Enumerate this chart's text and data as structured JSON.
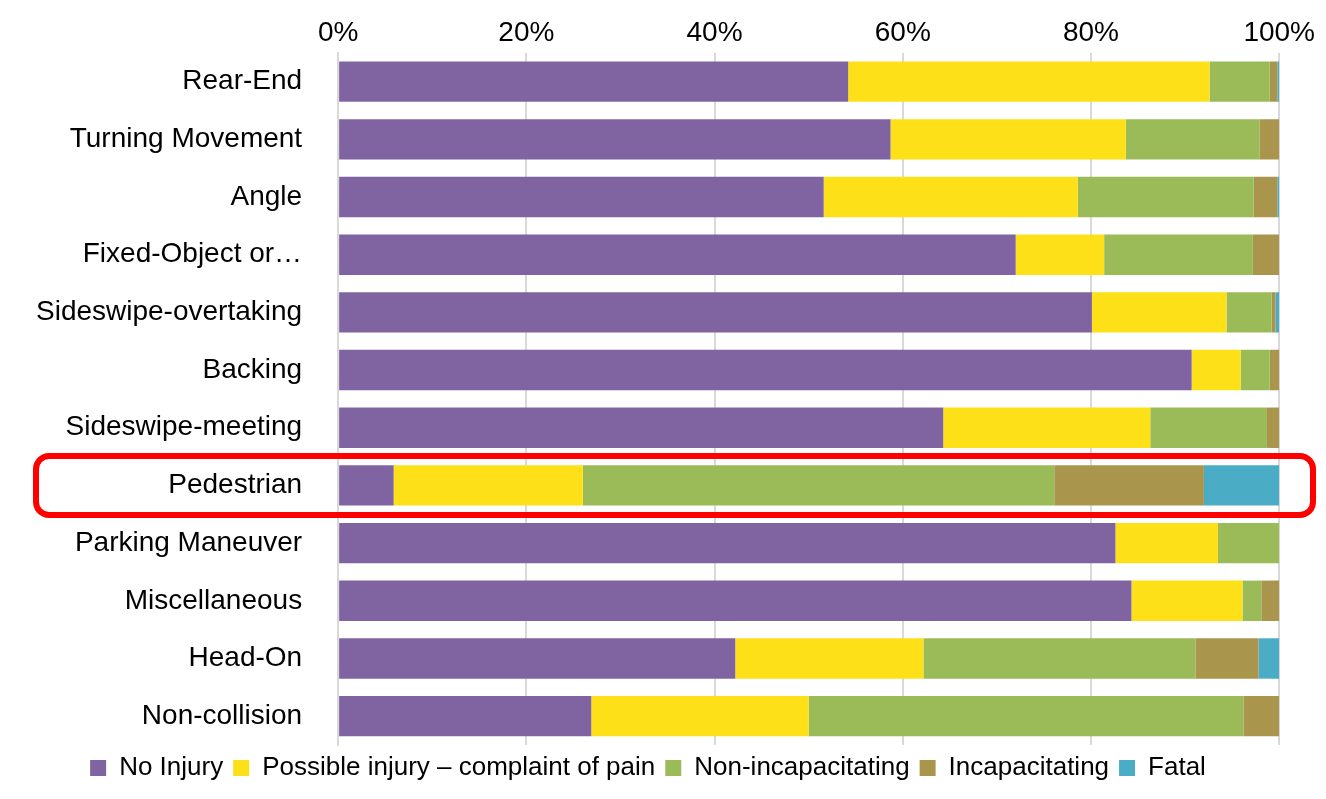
{
  "chart_data": {
    "type": "bar",
    "orientation": "horizontal",
    "stacked": true,
    "categories": [
      "Rear-End",
      "Turning Movement",
      "Angle",
      "Fixed-Object or…",
      "Sideswipe-overtaking",
      "Backing",
      "Sideswipe-meeting",
      "Pedestrian",
      "Parking Maneuver",
      "Miscellaneous",
      "Head-On",
      "Non-collision"
    ],
    "series": [
      {
        "name": "No Injury",
        "color": "#8064a2",
        "values": [
          54.2,
          58.7,
          51.6,
          72.0,
          80.1,
          90.7,
          64.3,
          5.9,
          82.6,
          84.3,
          42.2,
          26.9
        ]
      },
      {
        "name": "Possible injury – complaint of pain",
        "color": "#fde017",
        "values": [
          38.4,
          25.0,
          27.0,
          9.4,
          14.3,
          5.2,
          22.0,
          20.1,
          10.9,
          11.8,
          20.0,
          23.1
        ]
      },
      {
        "name": "Non-incapacitating",
        "color": "#9bbb59",
        "values": [
          6.4,
          14.2,
          18.7,
          15.8,
          4.8,
          3.1,
          12.4,
          50.1,
          6.5,
          2.0,
          28.9,
          46.2
        ]
      },
      {
        "name": "Incapacitating",
        "color": "#aa954d",
        "values": [
          0.8,
          2.1,
          2.5,
          2.8,
          0.4,
          1.0,
          1.3,
          15.9,
          0,
          1.9,
          6.7,
          3.8
        ]
      },
      {
        "name": "Fatal",
        "color": "#4bacc6",
        "values": [
          0.2,
          0,
          0.2,
          0,
          0.4,
          0,
          0,
          8.0,
          0,
          0,
          2.2,
          0
        ]
      }
    ],
    "xlim": [
      0,
      100
    ],
    "xticks": [
      {
        "value": 0,
        "label": "0%"
      },
      {
        "value": 20,
        "label": "20%"
      },
      {
        "value": 40,
        "label": "40%"
      },
      {
        "value": 60,
        "label": "60%"
      },
      {
        "value": 80,
        "label": "80%"
      },
      {
        "value": 100,
        "label": "100%"
      }
    ],
    "grid": "x",
    "legend": "bottom"
  }
}
